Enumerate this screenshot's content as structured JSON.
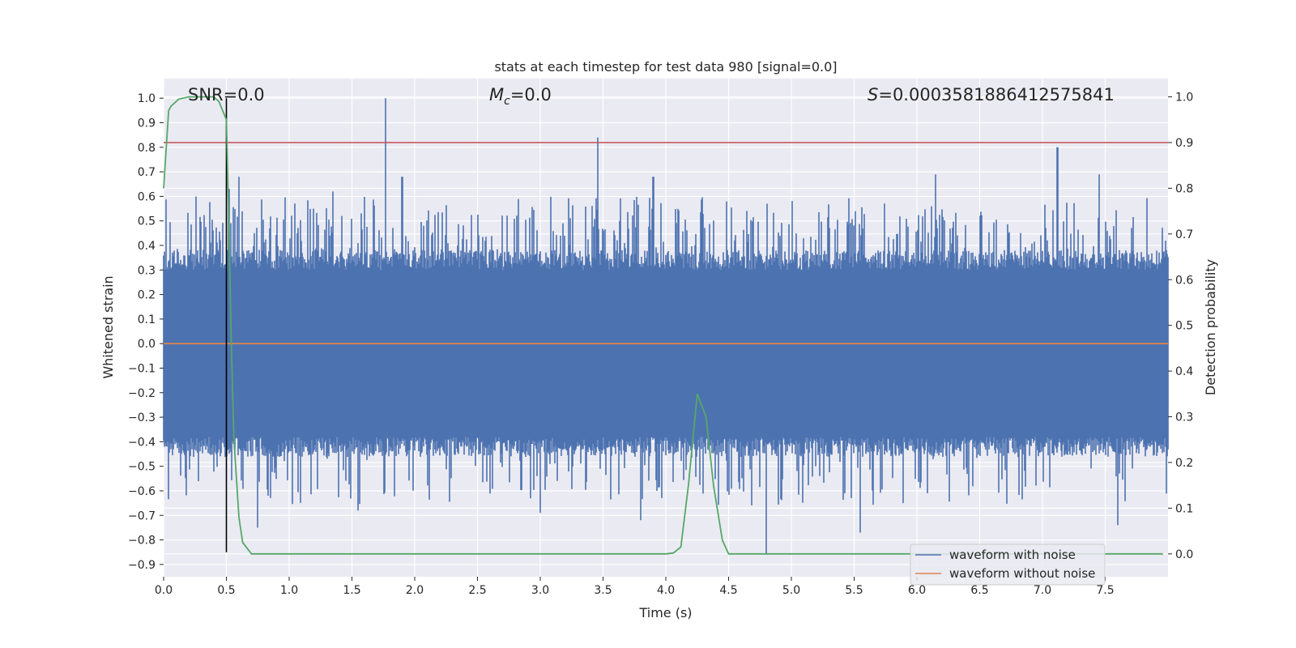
{
  "chart_data": {
    "type": "line",
    "title": "stats at each timestep for test data 980 [signal=0.0]",
    "xlabel": "Time (s)",
    "ylabel": "Whitened strain",
    "ylabel_right": "Detection probability",
    "xlim": [
      0.0,
      8.0
    ],
    "ylim": [
      -0.95,
      1.08
    ],
    "ylim_right": [
      -0.05,
      1.04
    ],
    "x_ticks": [
      0.0,
      0.5,
      1.0,
      1.5,
      2.0,
      2.5,
      3.0,
      3.5,
      4.0,
      4.5,
      5.0,
      5.5,
      6.0,
      6.5,
      7.0,
      7.5
    ],
    "x_tick_labels": [
      "0.0",
      "0.5",
      "1.0",
      "1.5",
      "2.0",
      "2.5",
      "3.0",
      "3.5",
      "4.0",
      "4.5",
      "5.0",
      "5.5",
      "6.0",
      "6.5",
      "7.0",
      "7.5"
    ],
    "y_ticks": [
      1.0,
      0.9,
      0.8,
      0.7,
      0.6,
      0.5,
      0.4,
      0.3,
      0.2,
      0.1,
      0.0,
      -0.1,
      -0.2,
      -0.3,
      -0.4,
      -0.5,
      -0.6,
      -0.7,
      -0.8,
      -0.9
    ],
    "y_tick_labels": [
      "1.0",
      "0.9",
      "0.8",
      "0.7",
      "0.6",
      "0.5",
      "0.4",
      "0.3",
      "0.2",
      "0.1",
      "0.0",
      "−0.1",
      "−0.2",
      "−0.3",
      "−0.4",
      "−0.5",
      "−0.6",
      "−0.7",
      "−0.8",
      "−0.9"
    ],
    "y_right_ticks": [
      1.0,
      0.9,
      0.8,
      0.7,
      0.6,
      0.5,
      0.4,
      0.3,
      0.2,
      0.1,
      0.0
    ],
    "y_right_tick_labels": [
      "1.0",
      "0.9",
      "0.8",
      "0.7",
      "0.6",
      "0.5",
      "0.4",
      "0.3",
      "0.2",
      "0.1",
      "0.0"
    ],
    "grid": true,
    "legend_position": "bottom-right",
    "annotations": {
      "snr": "SNR=0.0",
      "mc_symbol": "M",
      "mc_sub": "c",
      "mc_value": "=0.0",
      "s_symbol": "S",
      "s_value": "=0.0003581886412575841"
    },
    "series": [
      {
        "name": "waveform with noise",
        "color": "#4c72b0",
        "axis": "left",
        "style": "noise",
        "envelope_upper": 0.3,
        "envelope_lower": -0.38,
        "peaks": [
          {
            "x": 0.52,
            "y": 0.63
          },
          {
            "x": 0.6,
            "y": 0.68
          },
          {
            "x": 1.35,
            "y": 0.62
          },
          {
            "x": 1.77,
            "y": 1.0
          },
          {
            "x": 1.9,
            "y": 0.68
          },
          {
            "x": 3.46,
            "y": 0.84
          },
          {
            "x": 3.9,
            "y": 0.68
          },
          {
            "x": 6.15,
            "y": 0.69
          },
          {
            "x": 7.12,
            "y": 0.8
          },
          {
            "x": 7.45,
            "y": 0.69
          }
        ],
        "troughs": [
          {
            "x": 0.75,
            "y": -0.75
          },
          {
            "x": 1.55,
            "y": -0.68
          },
          {
            "x": 3.0,
            "y": -0.69
          },
          {
            "x": 3.8,
            "y": -0.72
          },
          {
            "x": 4.8,
            "y": -0.86
          },
          {
            "x": 5.55,
            "y": -0.77
          },
          {
            "x": 7.6,
            "y": -0.74
          }
        ]
      },
      {
        "name": "waveform without noise",
        "color": "#dd8452",
        "axis": "left",
        "x": [
          0.0,
          8.0
        ],
        "y": [
          0.0,
          0.0
        ]
      },
      {
        "name": "detection probability",
        "color": "#55a868",
        "axis": "right",
        "x": [
          0.0,
          0.04,
          0.06,
          0.12,
          0.2,
          0.3,
          0.4,
          0.44,
          0.5,
          0.52,
          0.54,
          0.56,
          0.6,
          0.63,
          0.7,
          1.0,
          2.0,
          3.0,
          3.5,
          4.0,
          4.06,
          4.12,
          4.18,
          4.25,
          4.32,
          4.38,
          4.45,
          4.5,
          5.0,
          6.0,
          7.0,
          7.96
        ],
        "y": [
          0.8,
          0.97,
          0.98,
          0.995,
          1.0,
          1.0,
          1.0,
          0.99,
          0.95,
          0.72,
          0.45,
          0.25,
          0.08,
          0.025,
          0.0,
          0.0,
          0.0,
          0.0,
          0.0,
          0.0,
          0.002,
          0.015,
          0.15,
          0.35,
          0.3,
          0.15,
          0.03,
          0.0,
          0.0,
          0.0,
          0.0,
          0.0
        ]
      }
    ],
    "vertical_line": {
      "x": 0.5,
      "y_from": -0.85,
      "y_to": 1.0,
      "color": "#000000"
    },
    "threshold_line": {
      "axis": "right",
      "y": 0.9,
      "color": "#c44e52"
    },
    "legend": [
      {
        "label": "waveform with noise",
        "color": "#4c72b0"
      },
      {
        "label": "waveform without noise",
        "color": "#dd8452"
      }
    ],
    "colors": {
      "plot_background": "#eaeaf2",
      "grid": "#ffffff"
    }
  }
}
